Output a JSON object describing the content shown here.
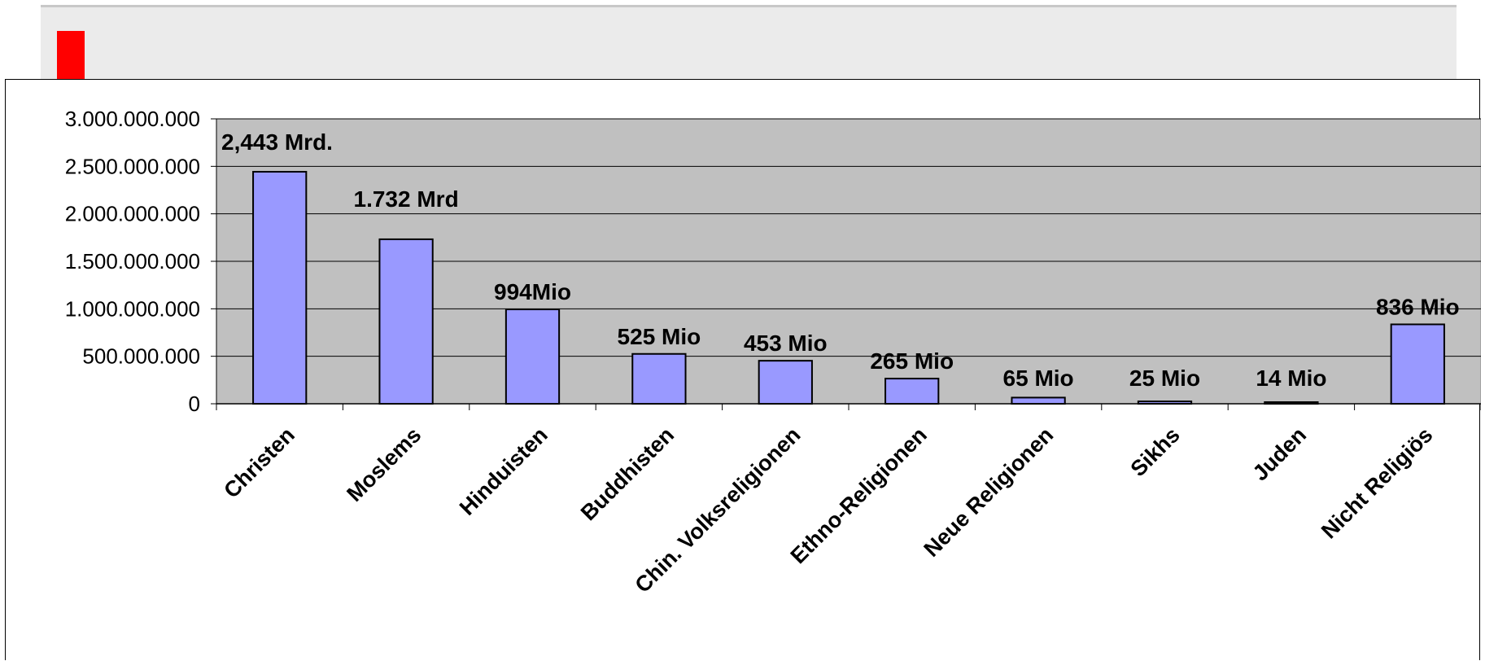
{
  "colors": {
    "plot_background": "#c0c0c0",
    "bar_fill": "#9999ff",
    "bar_stroke": "#000000",
    "accent": "#ff0000",
    "header_background": "#ebebeb"
  },
  "chart_data": {
    "type": "bar",
    "categories": [
      "Christen",
      "Moslems",
      "Hinduisten",
      "Buddhisten",
      "Chin. Volksreligionen",
      "Ethno-Religionen",
      "Neue Religionen",
      "Sikhs",
      "Juden",
      "Nicht Religiös"
    ],
    "values": [
      2443000000,
      1732000000,
      994000000,
      525000000,
      453000000,
      265000000,
      65000000,
      25000000,
      14000000,
      836000000
    ],
    "data_labels": [
      "2,443 Mrd.",
      "1.732 Mrd",
      "994Mio",
      "525 Mio",
      "453 Mio",
      "265 Mio",
      "65 Mio",
      "25 Mio",
      "14 Mio",
      "836 Mio"
    ],
    "ylim": [
      0,
      3000000000
    ],
    "y_ticks": [
      0,
      500000000,
      1000000000,
      1500000000,
      2000000000,
      2500000000,
      3000000000
    ],
    "y_tick_labels": [
      "0",
      "500.000.000",
      "1.000.000.000",
      "1.500.000.000",
      "2.000.000.000",
      "2.500.000.000",
      "3.000.000.000"
    ],
    "grid": true,
    "legend": "none",
    "title": "",
    "xlabel": "",
    "ylabel": ""
  }
}
